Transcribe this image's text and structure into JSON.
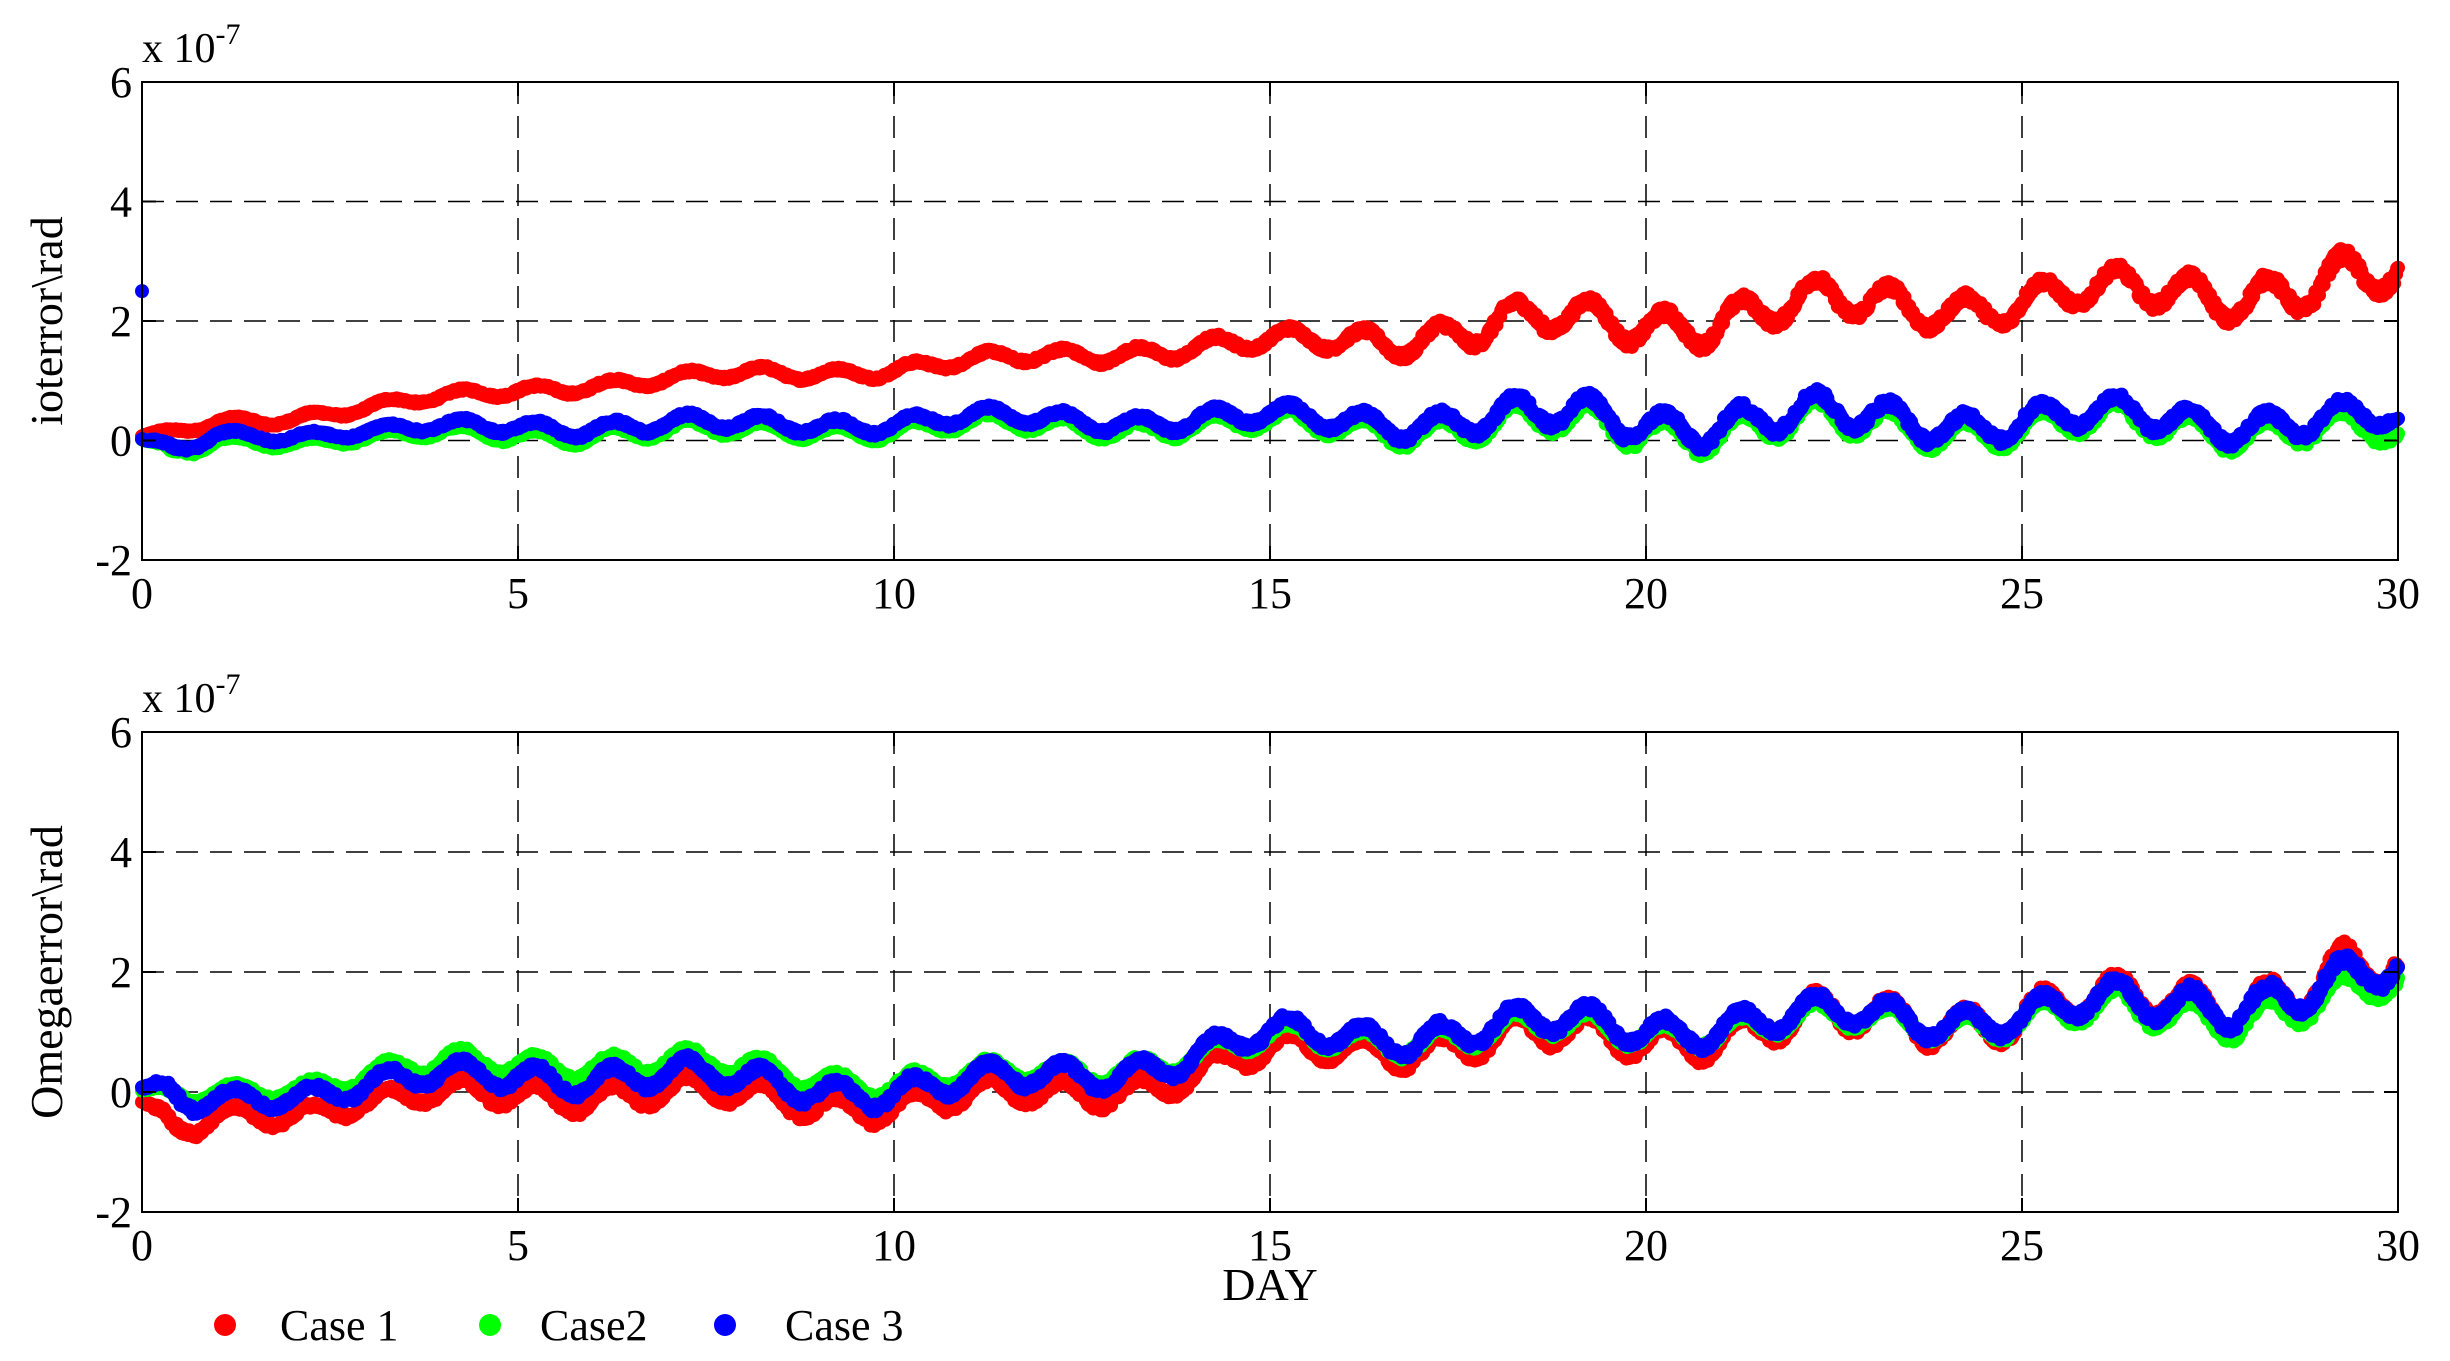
{
  "colors": {
    "case1": "#ff0000",
    "case2": "#00ff00",
    "case3": "#0000ff",
    "axis": "#000000",
    "grid": "#000000"
  },
  "legend": [
    {
      "label": "Case 1",
      "color": "#ff0000"
    },
    {
      "label": "Case2",
      "color": "#00ff00"
    },
    {
      "label": "Case 3",
      "color": "#0000ff"
    }
  ],
  "chart_data": [
    {
      "type": "scatter",
      "title": "",
      "xlabel": "",
      "ylabel": "ioterror\\rad",
      "multiplier_base": "x 10",
      "multiplier_exp": "-7",
      "xlim": [
        0,
        30
      ],
      "ylim": [
        -2,
        6
      ],
      "xticks": [
        0,
        5,
        10,
        15,
        20,
        25,
        30
      ],
      "yticks": [
        -2,
        0,
        2,
        4,
        6
      ],
      "grid": true,
      "series": [
        {
          "name": "Case 1",
          "x": [
            0,
            0.4,
            1,
            2,
            3,
            4,
            5,
            6,
            7,
            8,
            9,
            10,
            11,
            12,
            13,
            14,
            15,
            16,
            17,
            18,
            19,
            20,
            21,
            22,
            23,
            24,
            25,
            26,
            27,
            28,
            29,
            30
          ],
          "y": [
            0.05,
            0.1,
            0.3,
            0.4,
            0.55,
            0.7,
            0.85,
            0.95,
            1.0,
            1.1,
            1.15,
            1.2,
            1.3,
            1.4,
            1.5,
            1.55,
            1.6,
            1.7,
            1.8,
            1.9,
            1.95,
            2.0,
            2.1,
            2.2,
            2.25,
            2.3,
            2.35,
            2.4,
            2.5,
            2.55,
            2.6,
            2.6
          ],
          "osc_amp": [
            0.05,
            0.1,
            0.12,
            0.12,
            0.12,
            0.12,
            0.14,
            0.14,
            0.14,
            0.15,
            0.15,
            0.16,
            0.16,
            0.18,
            0.2,
            0.22,
            0.25,
            0.3,
            0.4,
            0.45,
            0.45,
            0.5,
            0.5,
            0.5,
            0.5,
            0.45,
            0.45,
            0.45,
            0.5,
            0.55,
            0.6,
            0.6
          ]
        },
        {
          "name": "Case2",
          "x": [
            0,
            0.4,
            1,
            2,
            3,
            4,
            5,
            6,
            7,
            8,
            9,
            10,
            11,
            12,
            13,
            14,
            15,
            16,
            17,
            18,
            19,
            20,
            21,
            22,
            23,
            24,
            25,
            26,
            27,
            28,
            29,
            30
          ],
          "y": [
            0.0,
            -0.3,
            0.0,
            0.0,
            0.05,
            0.1,
            0.1,
            0.15,
            0.15,
            0.15,
            0.2,
            0.2,
            0.25,
            0.25,
            0.25,
            0.25,
            0.25,
            0.25,
            0.25,
            0.25,
            0.25,
            0.25,
            0.25,
            0.25,
            0.25,
            0.25,
            0.25,
            0.25,
            0.25,
            0.25,
            0.25,
            0.0
          ],
          "osc_amp": [
            0.05,
            0.2,
            0.12,
            0.12,
            0.12,
            0.15,
            0.18,
            0.2,
            0.2,
            0.2,
            0.2,
            0.2,
            0.2,
            0.22,
            0.22,
            0.25,
            0.25,
            0.3,
            0.35,
            0.4,
            0.45,
            0.45,
            0.45,
            0.45,
            0.45,
            0.4,
            0.4,
            0.4,
            0.4,
            0.4,
            0.4,
            0.3
          ]
        },
        {
          "name": "Case 3",
          "x": [
            0,
            0.4,
            1,
            2,
            3,
            4,
            5,
            6,
            7,
            8,
            9,
            10,
            11,
            12,
            13,
            14,
            15,
            16,
            17,
            18,
            19,
            20,
            21,
            22,
            23,
            24,
            25,
            26,
            27,
            28,
            29,
            30
          ],
          "y": [
            0.0,
            -0.25,
            0.1,
            0.1,
            0.15,
            0.2,
            0.25,
            0.25,
            0.25,
            0.25,
            0.3,
            0.3,
            0.35,
            0.35,
            0.35,
            0.35,
            0.35,
            0.35,
            0.35,
            0.35,
            0.35,
            0.35,
            0.35,
            0.35,
            0.35,
            0.35,
            0.35,
            0.35,
            0.35,
            0.35,
            0.35,
            0.3
          ],
          "osc_amp": [
            0.05,
            0.2,
            0.12,
            0.12,
            0.12,
            0.15,
            0.18,
            0.2,
            0.2,
            0.2,
            0.2,
            0.2,
            0.2,
            0.22,
            0.22,
            0.25,
            0.25,
            0.3,
            0.35,
            0.4,
            0.45,
            0.45,
            0.45,
            0.45,
            0.45,
            0.4,
            0.4,
            0.4,
            0.4,
            0.4,
            0.4,
            0.3
          ],
          "outlier": {
            "x": 0,
            "y": 2.5
          }
        }
      ]
    },
    {
      "type": "scatter",
      "title": "",
      "xlabel": "DAY",
      "ylabel": "Omegaerror\\rad",
      "multiplier_base": "x 10",
      "multiplier_exp": "-7",
      "xlim": [
        0,
        30
      ],
      "ylim": [
        -2,
        6
      ],
      "xticks": [
        0,
        5,
        10,
        15,
        20,
        25,
        30
      ],
      "yticks": [
        -2,
        0,
        2,
        4,
        6
      ],
      "grid": true,
      "series": [
        {
          "name": "Case 1",
          "x": [
            0,
            0.4,
            1,
            2,
            3,
            4,
            5,
            6,
            7,
            8,
            9,
            10,
            11,
            12,
            13,
            14,
            15,
            16,
            17,
            18,
            19,
            20,
            21,
            22,
            23,
            24,
            25,
            26,
            27,
            28,
            29,
            30
          ],
          "y": [
            -0.2,
            -0.8,
            -0.4,
            -0.3,
            -0.2,
            -0.1,
            0.0,
            0.0,
            -0.05,
            -0.1,
            -0.15,
            -0.2,
            -0.15,
            -0.05,
            0.1,
            0.3,
            0.6,
            0.75,
            0.8,
            0.85,
            0.9,
            0.95,
            1.0,
            1.1,
            1.2,
            1.25,
            1.3,
            1.4,
            1.5,
            1.6,
            1.8,
            1.9
          ],
          "osc_amp": [
            0.1,
            0.4,
            0.25,
            0.25,
            0.25,
            0.3,
            0.35,
            0.35,
            0.35,
            0.35,
            0.35,
            0.35,
            0.35,
            0.35,
            0.35,
            0.35,
            0.35,
            0.35,
            0.4,
            0.45,
            0.45,
            0.45,
            0.45,
            0.5,
            0.5,
            0.5,
            0.5,
            0.5,
            0.55,
            0.6,
            0.65,
            0.7
          ]
        },
        {
          "name": "Case2",
          "x": [
            0,
            0.4,
            1,
            2,
            3,
            4,
            5,
            6,
            7,
            8,
            9,
            10,
            11,
            12,
            13,
            14,
            15,
            16,
            17,
            18,
            19,
            20,
            21,
            22,
            23,
            24,
            25,
            26,
            27,
            28,
            29,
            30
          ],
          "y": [
            0.0,
            -0.2,
            0.0,
            0.1,
            0.25,
            0.4,
            0.5,
            0.5,
            0.45,
            0.35,
            0.25,
            0.15,
            0.2,
            0.3,
            0.45,
            0.6,
            0.85,
            0.9,
            0.95,
            1.0,
            1.05,
            1.05,
            1.1,
            1.15,
            1.2,
            1.2,
            1.25,
            1.3,
            1.3,
            1.4,
            1.55,
            1.7
          ],
          "osc_amp": [
            0.1,
            0.3,
            0.2,
            0.2,
            0.25,
            0.3,
            0.3,
            0.3,
            0.3,
            0.3,
            0.3,
            0.3,
            0.3,
            0.3,
            0.3,
            0.3,
            0.3,
            0.3,
            0.35,
            0.35,
            0.35,
            0.35,
            0.35,
            0.35,
            0.35,
            0.35,
            0.4,
            0.45,
            0.5,
            0.5,
            0.45,
            0.4
          ]
        },
        {
          "name": "Case 3",
          "x": [
            0,
            0.4,
            1,
            2,
            3,
            4,
            5,
            6,
            7,
            8,
            9,
            10,
            11,
            12,
            13,
            14,
            15,
            16,
            17,
            18,
            19,
            20,
            21,
            22,
            23,
            24,
            25,
            26,
            27,
            28,
            29,
            30
          ],
          "y": [
            0.0,
            -0.3,
            -0.1,
            0.0,
            0.1,
            0.2,
            0.3,
            0.3,
            0.25,
            0.15,
            0.1,
            0.05,
            0.1,
            0.25,
            0.4,
            0.6,
            0.9,
            0.95,
            1.0,
            1.05,
            1.1,
            1.1,
            1.15,
            1.2,
            1.25,
            1.25,
            1.3,
            1.4,
            1.45,
            1.6,
            1.75,
            1.9
          ],
          "osc_amp": [
            0.15,
            0.45,
            0.25,
            0.25,
            0.3,
            0.3,
            0.35,
            0.35,
            0.35,
            0.35,
            0.35,
            0.35,
            0.35,
            0.35,
            0.35,
            0.35,
            0.35,
            0.35,
            0.4,
            0.4,
            0.4,
            0.4,
            0.4,
            0.4,
            0.4,
            0.4,
            0.4,
            0.45,
            0.5,
            0.5,
            0.5,
            0.5
          ]
        }
      ]
    }
  ]
}
